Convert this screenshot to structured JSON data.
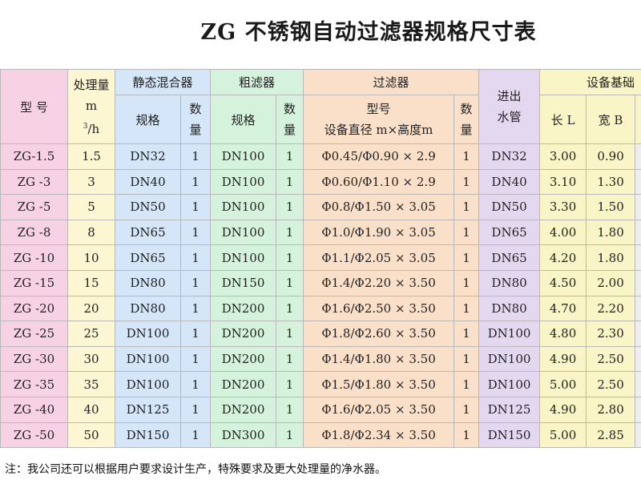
{
  "title": "ZG 不锈钢自动过滤器规格尺寸表",
  "header": {
    "model": "型 号",
    "capacity_line1": "处理量",
    "capacity_line2": "m",
    "capacity_sup": "3",
    "capacity_line2_tail": "/h",
    "static_mixer": "静态混合器",
    "coarse_filter": "粗滤器",
    "filter": "过滤器",
    "inout_line1": "进出",
    "inout_line2": "水管",
    "foundation": "设备基础",
    "spec": "规格",
    "qty_line1": "数",
    "qty_line2": "量",
    "filter_model": "型号",
    "filter_dims": "设备直径 m×高度m",
    "length": "长 L",
    "width": "宽 B"
  },
  "rows": [
    {
      "model": "ZG-1.5",
      "capacity": "1.5",
      "mixer": "DN32",
      "mixer_qty": "1",
      "coarse": "DN100",
      "coarse_qty": "1",
      "filter": "Φ0.45/Φ0.90 × 2.9",
      "filter_qty": "1",
      "pipe": "DN32",
      "length": "3.00",
      "width": "0.90"
    },
    {
      "model": "ZG -3",
      "capacity": "3",
      "mixer": "DN40",
      "mixer_qty": "1",
      "coarse": "DN100",
      "coarse_qty": "1",
      "filter": "Φ0.60/Φ1.10 × 2.9",
      "filter_qty": "1",
      "pipe": "DN40",
      "length": "3.10",
      "width": "1.30"
    },
    {
      "model": "ZG -5",
      "capacity": "5",
      "mixer": "DN50",
      "mixer_qty": "1",
      "coarse": "DN100",
      "coarse_qty": "1",
      "filter": "Φ0.8/Φ1.50 × 3.05",
      "filter_qty": "1",
      "pipe": "DN50",
      "length": "3.30",
      "width": "1.50"
    },
    {
      "model": "ZG -8",
      "capacity": "8",
      "mixer": "DN65",
      "mixer_qty": "1",
      "coarse": "DN100",
      "coarse_qty": "1",
      "filter": "Φ1.0/Φ1.90 × 3.05",
      "filter_qty": "1",
      "pipe": "DN65",
      "length": "4.00",
      "width": "1.80"
    },
    {
      "model": "ZG -10",
      "capacity": "10",
      "mixer": "DN65",
      "mixer_qty": "1",
      "coarse": "DN100",
      "coarse_qty": "1",
      "filter": "Φ1.1/Φ2.05 × 3.05",
      "filter_qty": "1",
      "pipe": "DN65",
      "length": "4.20",
      "width": "1.80"
    },
    {
      "model": "ZG -15",
      "capacity": "15",
      "mixer": "DN80",
      "mixer_qty": "1",
      "coarse": "DN150",
      "coarse_qty": "1",
      "filter": "Φ1.4/Φ2.20 × 3.50",
      "filter_qty": "1",
      "pipe": "DN80",
      "length": "4.50",
      "width": "2.00"
    },
    {
      "model": "ZG -20",
      "capacity": "20",
      "mixer": "DN80",
      "mixer_qty": "1",
      "coarse": "DN200",
      "coarse_qty": "1",
      "filter": "Φ1.6/Φ2.50 × 3.50",
      "filter_qty": "1",
      "pipe": "DN80",
      "length": "4.70",
      "width": "2.20"
    },
    {
      "model": "ZG -25",
      "capacity": "25",
      "mixer": "DN100",
      "mixer_qty": "1",
      "coarse": "DN200",
      "coarse_qty": "1",
      "filter": "Φ1.8/Φ2.60 × 3.50",
      "filter_qty": "1",
      "pipe": "DN100",
      "length": "4.80",
      "width": "2.30"
    },
    {
      "model": "ZG -30",
      "capacity": "30",
      "mixer": "DN100",
      "mixer_qty": "1",
      "coarse": "DN200",
      "coarse_qty": "1",
      "filter": "Φ1.4/Φ1.80 × 3.50",
      "filter_qty": "1",
      "pipe": "DN100",
      "length": "4.90",
      "width": "2.50"
    },
    {
      "model": "ZG -35",
      "capacity": "35",
      "mixer": "DN100",
      "mixer_qty": "1",
      "coarse": "DN200",
      "coarse_qty": "1",
      "filter": "Φ1.5/Φ1.80 × 3.50",
      "filter_qty": "1",
      "pipe": "DN100",
      "length": "5.00",
      "width": "2.50"
    },
    {
      "model": "ZG -40",
      "capacity": "40",
      "mixer": "DN125",
      "mixer_qty": "1",
      "coarse": "DN200",
      "coarse_qty": "1",
      "filter": "Φ1.6/Φ2.05 × 3.50",
      "filter_qty": "1",
      "pipe": "DN125",
      "length": "4.90",
      "width": "2.80"
    },
    {
      "model": "ZG -50",
      "capacity": "50",
      "mixer": "DN150",
      "mixer_qty": "1",
      "coarse": "DN300",
      "coarse_qty": "1",
      "filter": "Φ1.8/Φ2.34 × 3.50",
      "filter_qty": "1",
      "pipe": "DN150",
      "length": "5.00",
      "width": "2.85"
    }
  ],
  "note": "注：我公司还可以根据用户要求设计生产，特殊要求及更大处理量的净水器。"
}
